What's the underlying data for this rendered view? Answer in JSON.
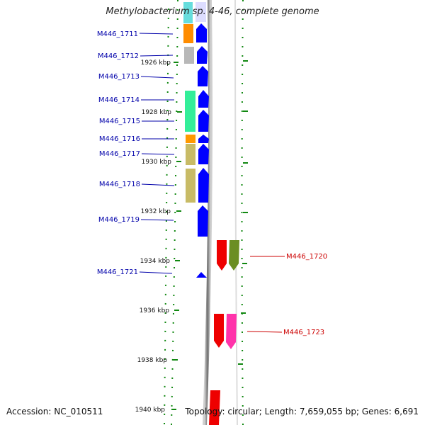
{
  "title": "Methylobacterium sp. 4-46, complete genome",
  "footer": {
    "accession": "Accession: NC_010511",
    "summary": "Topology: circular; Length: 7,659,055 bp; Genes: 6,691"
  },
  "ticks": [
    "1926 kbp",
    "1928 kbp",
    "1930 kbp",
    "1932 kbp",
    "1934 kbp",
    "1936 kbp",
    "1938 kbp",
    "1940 kbp"
  ],
  "genes_left": [
    "M446_1711",
    "M446_1712",
    "M446_1713",
    "M446_1714",
    "M446_1715",
    "M446_1716",
    "M446_1717",
    "M446_1718",
    "M446_1719",
    "M446_1721"
  ],
  "genes_right": [
    "M446_1720",
    "M446_1723"
  ],
  "colors": {
    "forward_strand": "#0000ff",
    "reverse_strand": "#ff0000",
    "backbone": "#888888",
    "dotted_rings": "#118811",
    "label_left": "#0000aa",
    "label_right": "#cc0000"
  }
}
